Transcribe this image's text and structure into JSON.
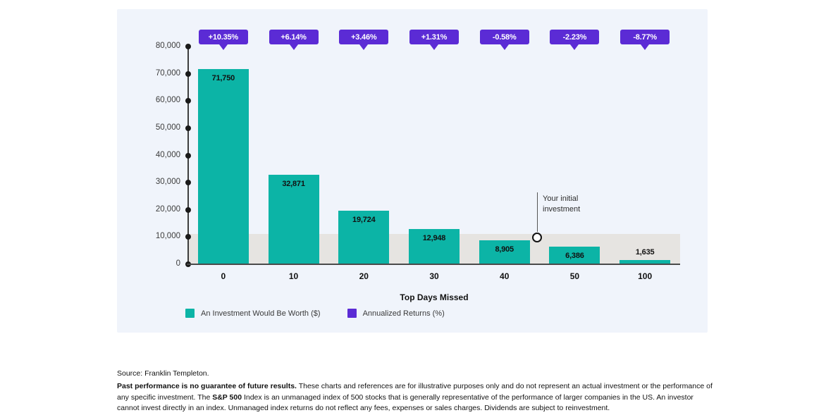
{
  "chart_data": {
    "type": "bar",
    "title": "",
    "xlabel": "Top Days Missed",
    "ylabel": "",
    "ylim": [
      0,
      80000
    ],
    "grid": false,
    "legend_position": "bottom-left",
    "y_ticks": [
      {
        "value": 0,
        "label": "0"
      },
      {
        "value": 10000,
        "label": "10,000"
      },
      {
        "value": 20000,
        "label": "20,000"
      },
      {
        "value": 30000,
        "label": "30,000"
      },
      {
        "value": 40000,
        "label": "40,000"
      },
      {
        "value": 50000,
        "label": "50,000"
      },
      {
        "value": 60000,
        "label": "60,000"
      },
      {
        "value": 70000,
        "label": "70,000"
      },
      {
        "value": 80000,
        "label": "80,000"
      }
    ],
    "categories": [
      "0",
      "10",
      "20",
      "30",
      "40",
      "50",
      "100"
    ],
    "series": [
      {
        "name": "An Investment Would Be Worth ($)",
        "type": "bar",
        "color": "#0cb4a6",
        "values": [
          71750,
          32871,
          19724,
          12948,
          8905,
          6386,
          1635
        ],
        "value_labels": [
          "71,750",
          "32,871",
          "19,724",
          "12,948",
          "8,905",
          "6,386",
          "1,635"
        ]
      },
      {
        "name": "Annualized Returns (%)",
        "type": "callout-badge",
        "color": "#5b2bd5",
        "value_labels": [
          "+10.35%",
          "+6.14%",
          "+3.46%",
          "+1.31%",
          "-0.58%",
          "-2.23%",
          "-8.77%"
        ]
      }
    ],
    "reference_band": {
      "from": 0,
      "to": 11200,
      "color": "#e6e4e1"
    },
    "annotation": {
      "text": "Your initial investment"
    }
  },
  "legend": {
    "items": [
      {
        "label": "An Investment Would Be Worth ($)",
        "color": "#0cb4a6"
      },
      {
        "label": "Annualized Returns (%)",
        "color": "#5b2bd5"
      }
    ]
  },
  "footer": {
    "source": "Source: Franklin Templeton.",
    "disclaimer": {
      "bold_lead": "Past performance is no guarantee of future results.",
      "text_1": " These charts and references are for illustrative purposes only and do not represent an actual investment or the performance of any specific investment. The ",
      "bold_mid": "S&P 500",
      "text_2": " Index is an unmanaged index of 500 stocks that is generally representative of the performance of larger companies in the US. An investor cannot invest directly in an index. Unmanaged index returns do not reflect any fees, expenses or sales charges. Dividends are subject to reinvestment."
    }
  },
  "colors": {
    "panel_bg": "#f0f4fb",
    "bar_teal": "#0cb4a6",
    "badge_purple": "#5b2bd5",
    "band_gray": "#e6e4e1",
    "axis_dark": "#3d3d3d"
  }
}
